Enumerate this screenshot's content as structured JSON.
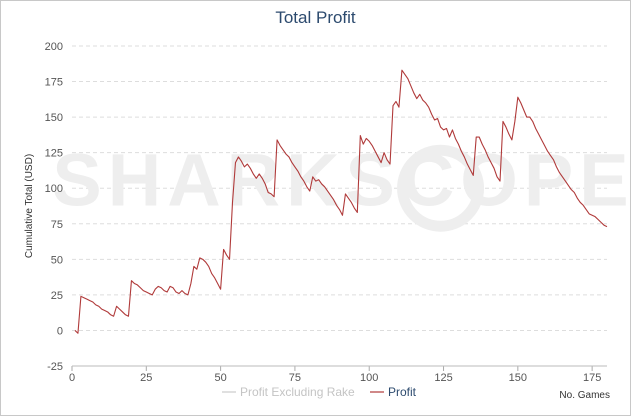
{
  "chart_data": {
    "type": "line",
    "title": "Total Profit",
    "xlabel": "No. Games",
    "ylabel": "Cumulative Total (USD)",
    "xlim": [
      0,
      180
    ],
    "ylim": [
      -25,
      200
    ],
    "xticks": [
      0,
      25,
      50,
      75,
      100,
      125,
      150,
      175
    ],
    "yticks": [
      -25,
      0,
      25,
      50,
      75,
      100,
      125,
      150,
      175,
      200
    ],
    "grid": true,
    "legend_position": "bottom",
    "watermark": "SHARKSCOPE",
    "series": [
      {
        "name": "Profit Excluding Rake",
        "color": "#cccccc",
        "values": []
      },
      {
        "name": "Profit",
        "color": "#b03a3a",
        "x": [
          1,
          2,
          3,
          4,
          5,
          6,
          7,
          8,
          9,
          10,
          11,
          12,
          13,
          14,
          15,
          16,
          17,
          18,
          19,
          20,
          21,
          22,
          23,
          24,
          25,
          26,
          27,
          28,
          29,
          30,
          31,
          32,
          33,
          34,
          35,
          36,
          37,
          38,
          39,
          40,
          41,
          42,
          43,
          44,
          45,
          46,
          47,
          48,
          49,
          50,
          51,
          52,
          53,
          54,
          55,
          56,
          57,
          58,
          59,
          60,
          61,
          62,
          63,
          64,
          65,
          66,
          67,
          68,
          69,
          70,
          71,
          72,
          73,
          74,
          75,
          76,
          77,
          78,
          79,
          80,
          81,
          82,
          83,
          84,
          85,
          86,
          87,
          88,
          89,
          90,
          91,
          92,
          93,
          94,
          95,
          96,
          97,
          98,
          99,
          100,
          101,
          102,
          103,
          104,
          105,
          106,
          107,
          108,
          109,
          110,
          111,
          112,
          113,
          114,
          115,
          116,
          117,
          118,
          119,
          120,
          121,
          122,
          123,
          124,
          125,
          126,
          127,
          128,
          129,
          130,
          131,
          132,
          133,
          134,
          135,
          136,
          137,
          138,
          139,
          140,
          141,
          142,
          143,
          144,
          145,
          146,
          147,
          148,
          149,
          150,
          151,
          152,
          153,
          154,
          155,
          156,
          157,
          158,
          159,
          160,
          161,
          162,
          163,
          164,
          165,
          166,
          167,
          168,
          169,
          170,
          171,
          172,
          173,
          174,
          175,
          176,
          177,
          178,
          179,
          180
        ],
        "values": [
          0,
          -2,
          24,
          23,
          22,
          21,
          20,
          18,
          17,
          15,
          14,
          13,
          11,
          10,
          17,
          15,
          13,
          11,
          10,
          35,
          33,
          32,
          30,
          28,
          27,
          26,
          25,
          29,
          31,
          30,
          28,
          27,
          31,
          30,
          27,
          26,
          28,
          26,
          25,
          33,
          45,
          43,
          51,
          50,
          48,
          45,
          40,
          37,
          33,
          29,
          57,
          53,
          50,
          90,
          118,
          122,
          119,
          115,
          117,
          114,
          110,
          107,
          110,
          107,
          103,
          97,
          96,
          94,
          134,
          130,
          127,
          124,
          122,
          118,
          115,
          112,
          108,
          105,
          101,
          98,
          108,
          105,
          106,
          103,
          101,
          98,
          95,
          92,
          88,
          85,
          81,
          96,
          93,
          90,
          86,
          83,
          137,
          131,
          135,
          133,
          130,
          126,
          122,
          118,
          125,
          120,
          117,
          158,
          161,
          157,
          183,
          180,
          177,
          172,
          167,
          163,
          166,
          162,
          160,
          157,
          152,
          148,
          149,
          143,
          141,
          142,
          136,
          141,
          135,
          131,
          126,
          122,
          117,
          113,
          109,
          136,
          136,
          131,
          127,
          122,
          118,
          114,
          108,
          105,
          147,
          143,
          138,
          134,
          147,
          164,
          160,
          155,
          150,
          150,
          147,
          142,
          138,
          134,
          130,
          126,
          123,
          120,
          115,
          111,
          108,
          105,
          102,
          99,
          97,
          93,
          90,
          88,
          85,
          82,
          81,
          80,
          78,
          76,
          74,
          73
        ]
      }
    ]
  }
}
